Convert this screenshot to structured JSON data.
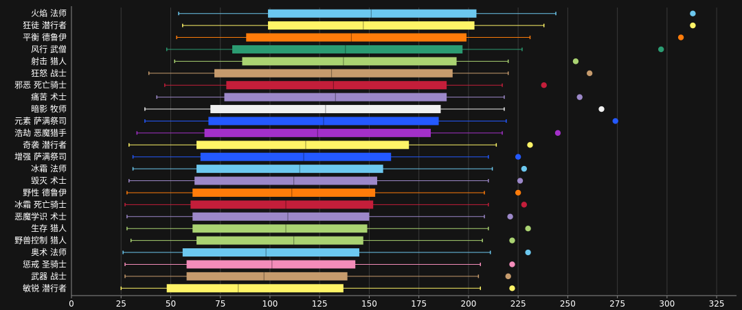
{
  "chart_data": {
    "type": "boxplot",
    "title": "",
    "xlabel": "",
    "ylabel": "",
    "xlim": [
      0,
      335
    ],
    "xticks": [
      0,
      25,
      50,
      75,
      100,
      125,
      150,
      175,
      200,
      225,
      250,
      275,
      300,
      325
    ],
    "grid": "vertical",
    "background": "#141414",
    "categories": [
      {
        "label": "火焰 法师",
        "color": "#6cc8ef",
        "whisker_low": 54,
        "q1": 99,
        "median": 151,
        "q3": 204,
        "whisker_high": 244,
        "outlier": 313
      },
      {
        "label": "狂徒 潜行者",
        "color": "#fff467",
        "whisker_low": 56,
        "q1": 99,
        "median": 147,
        "q3": 203,
        "whisker_high": 238,
        "outlier": 313
      },
      {
        "label": "平衡 德鲁伊",
        "color": "#ff7c0a",
        "whisker_low": 53,
        "q1": 88,
        "median": 141,
        "q3": 199,
        "whisker_high": 231,
        "outlier": 307
      },
      {
        "label": "风行 武僧",
        "color": "#2b9c72",
        "whisker_low": 48,
        "q1": 81,
        "median": 138,
        "q3": 197,
        "whisker_high": 227,
        "outlier": 297
      },
      {
        "label": "射击 猎人",
        "color": "#aad372",
        "whisker_low": 52,
        "q1": 86,
        "median": 137,
        "q3": 194,
        "whisker_high": 220,
        "outlier": 254
      },
      {
        "label": "狂怒 战士",
        "color": "#c69b6d",
        "whisker_low": 39,
        "q1": 72,
        "median": 131,
        "q3": 192,
        "whisker_high": 220,
        "outlier": 261
      },
      {
        "label": "邪恶 死亡骑士",
        "color": "#c41e3a",
        "whisker_low": 47,
        "q1": 78,
        "median": 132,
        "q3": 189,
        "whisker_high": 217,
        "outlier": 238
      },
      {
        "label": "痛苦 术士",
        "color": "#9c88c9",
        "whisker_low": 43,
        "q1": 77,
        "median": 133,
        "q3": 189,
        "whisker_high": 218,
        "outlier": 256
      },
      {
        "label": "暗影 牧师",
        "color": "#f0f0f0",
        "whisker_low": 37,
        "q1": 70,
        "median": 128,
        "q3": 186,
        "whisker_high": 218,
        "outlier": 267
      },
      {
        "label": "元素 萨满祭司",
        "color": "#2459ff",
        "whisker_low": 37,
        "q1": 69,
        "median": 127,
        "q3": 185,
        "whisker_high": 219,
        "outlier": 274
      },
      {
        "label": "浩劫 恶魔猎手",
        "color": "#a330c9",
        "whisker_low": 33,
        "q1": 67,
        "median": 124,
        "q3": 181,
        "whisker_high": 217,
        "outlier": 245
      },
      {
        "label": "奇袭 潜行者",
        "color": "#fff467",
        "whisker_low": 29,
        "q1": 63,
        "median": 118,
        "q3": 170,
        "whisker_high": 214,
        "outlier": 231
      },
      {
        "label": "增强 萨满祭司",
        "color": "#2459ff",
        "whisker_low": 31,
        "q1": 65,
        "median": 117,
        "q3": 161,
        "whisker_high": 210,
        "outlier": 225
      },
      {
        "label": "冰霜 法师",
        "color": "#6cc8ef",
        "whisker_low": 31,
        "q1": 63,
        "median": 115,
        "q3": 157,
        "whisker_high": 212,
        "outlier": 228
      },
      {
        "label": "毁灭 术士",
        "color": "#9c88c9",
        "whisker_low": 29,
        "q1": 62,
        "median": 112,
        "q3": 154,
        "whisker_high": 210,
        "outlier": 226
      },
      {
        "label": "野性 德鲁伊",
        "color": "#ff7c0a",
        "whisker_low": 28,
        "q1": 61,
        "median": 111,
        "q3": 153,
        "whisker_high": 208,
        "outlier": 225
      },
      {
        "label": "冰霜 死亡骑士",
        "color": "#c41e3a",
        "whisker_low": 27,
        "q1": 60,
        "median": 108,
        "q3": 152,
        "whisker_high": 210,
        "outlier": 228
      },
      {
        "label": "恶魔学识 术士",
        "color": "#9c88c9",
        "whisker_low": 28,
        "q1": 61,
        "median": 109,
        "q3": 150,
        "whisker_high": 208,
        "outlier": 221
      },
      {
        "label": "生存 猎人",
        "color": "#aad372",
        "whisker_low": 28,
        "q1": 61,
        "median": 108,
        "q3": 149,
        "whisker_high": 210,
        "outlier": 230
      },
      {
        "label": "野兽控制 猎人",
        "color": "#aad372",
        "whisker_low": 30,
        "q1": 63,
        "median": 112,
        "q3": 147,
        "whisker_high": 207,
        "outlier": 222
      },
      {
        "label": "奥术 法师",
        "color": "#6cc8ef",
        "whisker_low": 26,
        "q1": 56,
        "median": 98,
        "q3": 145,
        "whisker_high": 211,
        "outlier": 230
      },
      {
        "label": "惩戒 圣骑士",
        "color": "#f48cba",
        "whisker_low": 27,
        "q1": 58,
        "median": 101,
        "q3": 143,
        "whisker_high": 206,
        "outlier": 222
      },
      {
        "label": "武器 战士",
        "color": "#c69b6d",
        "whisker_low": 27,
        "q1": 58,
        "median": 97,
        "q3": 139,
        "whisker_high": 205,
        "outlier": 220
      },
      {
        "label": "敏锐 潜行者",
        "color": "#fff467",
        "whisker_low": 25,
        "q1": 48,
        "median": 84,
        "q3": 137,
        "whisker_high": 206,
        "outlier": 222
      }
    ]
  }
}
